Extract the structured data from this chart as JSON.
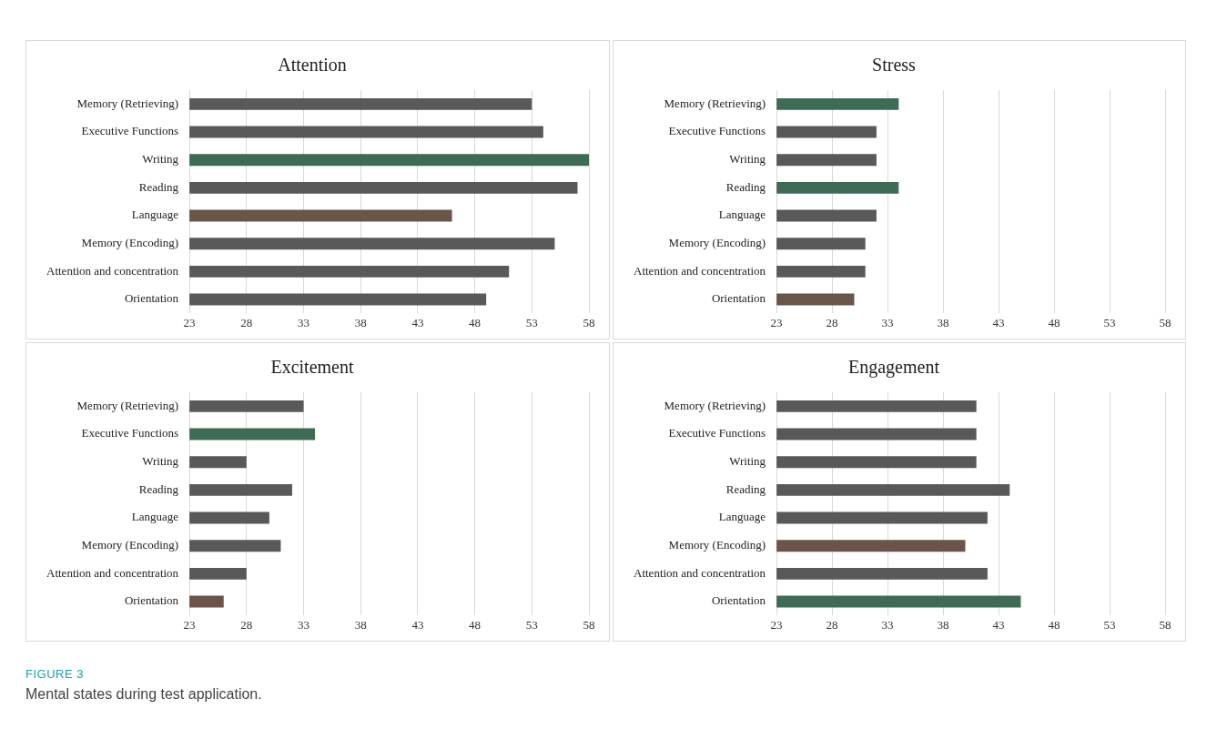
{
  "chart_data": [
    {
      "type": "bar",
      "orientation": "horizontal",
      "title": "Attention",
      "categories": [
        "Memory (Retrieving)",
        "Executive Functions",
        "Writing",
        "Reading",
        "Language",
        "Memory (Encoding)",
        "Attention and concentration",
        "Orientation"
      ],
      "values": [
        53,
        54,
        58,
        57,
        46,
        55,
        51,
        49
      ],
      "colors": [
        "#595959",
        "#595959",
        "#3f6b55",
        "#595959",
        "#6b5449",
        "#595959",
        "#595959",
        "#595959"
      ],
      "xlim": [
        23,
        58
      ],
      "xticks": [
        23,
        28,
        33,
        38,
        43,
        48,
        53,
        58
      ],
      "grid": "x",
      "legend": false
    },
    {
      "type": "bar",
      "orientation": "horizontal",
      "title": "Stress",
      "categories": [
        "Memory (Retrieving)",
        "Executive Functions",
        "Writing",
        "Reading",
        "Language",
        "Memory (Encoding)",
        "Attention and concentration",
        "Orientation"
      ],
      "values": [
        34,
        32,
        32,
        34,
        32,
        31,
        31,
        30
      ],
      "colors": [
        "#3f6b55",
        "#595959",
        "#595959",
        "#3f6b55",
        "#595959",
        "#595959",
        "#595959",
        "#6b5449"
      ],
      "xlim": [
        23,
        58
      ],
      "xticks": [
        23,
        28,
        33,
        38,
        43,
        48,
        53,
        58
      ],
      "grid": "x",
      "legend": false
    },
    {
      "type": "bar",
      "orientation": "horizontal",
      "title": "Excitement",
      "categories": [
        "Memory (Retrieving)",
        "Executive Functions",
        "Writing",
        "Reading",
        "Language",
        "Memory (Encoding)",
        "Attention and concentration",
        "Orientation"
      ],
      "values": [
        33,
        34,
        28,
        32,
        30,
        31,
        28,
        26
      ],
      "colors": [
        "#595959",
        "#3f6b55",
        "#595959",
        "#595959",
        "#595959",
        "#595959",
        "#595959",
        "#6b5449"
      ],
      "xlim": [
        23,
        58
      ],
      "xticks": [
        23,
        28,
        33,
        38,
        43,
        48,
        53,
        58
      ],
      "grid": "x",
      "legend": false
    },
    {
      "type": "bar",
      "orientation": "horizontal",
      "title": "Engagement",
      "categories": [
        "Memory (Retrieving)",
        "Executive Functions",
        "Writing",
        "Reading",
        "Language",
        "Memory (Encoding)",
        "Attention and concentration",
        "Orientation"
      ],
      "values": [
        41,
        41,
        41,
        44,
        42,
        40,
        42,
        45
      ],
      "colors": [
        "#595959",
        "#595959",
        "#595959",
        "#595959",
        "#595959",
        "#6b5449",
        "#595959",
        "#3f6b55"
      ],
      "xlim": [
        23,
        58
      ],
      "xticks": [
        23,
        28,
        33,
        38,
        43,
        48,
        53,
        58
      ],
      "grid": "x",
      "legend": false,
      "annotations": [
        "FIGURE 3",
        "Mental states during test application."
      ]
    }
  ]
}
